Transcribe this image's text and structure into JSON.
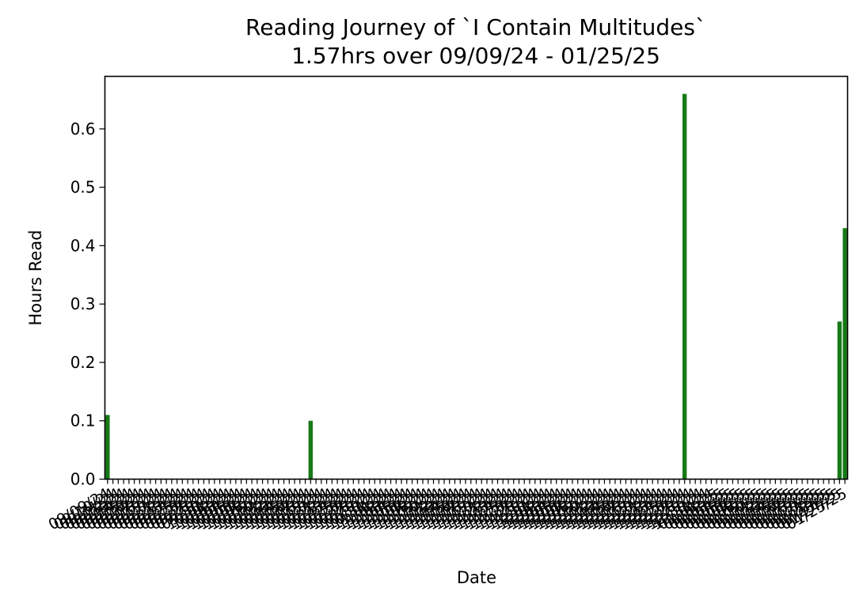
{
  "chart_data": {
    "type": "bar",
    "title": "Reading Journey of `I Contain Multitudes`",
    "subtitle": "1.57hrs over 09/09/24 - 01/25/25",
    "xlabel": "Date",
    "ylabel": "Hours Read",
    "ylim": [
      0,
      0.69
    ],
    "yticks": [
      "0.0",
      "0.1",
      "0.2",
      "0.3",
      "0.4",
      "0.5",
      "0.6"
    ],
    "grid": false,
    "legend": "none",
    "bar_color": "#167a16",
    "x_start": "2024-09-09",
    "x_end": "2025-01-25",
    "date_format": "MM/DD/YY",
    "categories": [
      "09/09/24",
      "10/17/24",
      "12/26/24",
      "01/24/25",
      "01/25/25"
    ],
    "values": [
      0.11,
      0.1,
      0.66,
      0.27,
      0.43
    ]
  }
}
